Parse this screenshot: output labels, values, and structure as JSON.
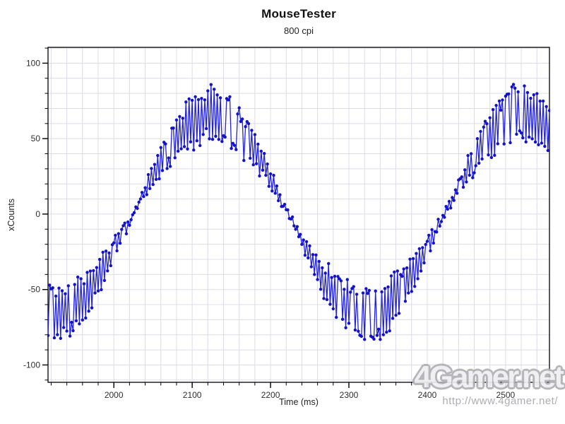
{
  "chart_data": {
    "type": "line",
    "title": "MouseTester",
    "subtitle": "800 cpi",
    "xlabel": "Time (ms)",
    "ylabel": "xCounts",
    "xlim": [
      1916,
      2556
    ],
    "ylim": [
      -111.5,
      110.5
    ],
    "x_major_ticks": [
      2000,
      2100,
      2200,
      2300,
      2400,
      2500
    ],
    "x_minor_step_ms": 20,
    "y_major_ticks": [
      100,
      50,
      0,
      -50,
      -100
    ],
    "y_minor_step_counts": 10,
    "grid": {
      "show": true,
      "color": "#dcdce8",
      "x_interval_ms": 20,
      "y_interval_counts": 10
    },
    "axis_color": "#000000",
    "tick_label_color": "#2e2e2e",
    "legend": "none",
    "series": [
      {
        "name": "xCounts",
        "line_color": "#2222dd",
        "marker_color": "#1212c8",
        "marker": "circle",
        "sample_interval_ms": 2,
        "signal_model": {
          "shape": "sine wave with alternating multiplicative jitter (polling jitter)",
          "mean_amplitude_counts": 66,
          "period_ms": 398,
          "rising_zero_crossing_ms": 2024,
          "jitter_fraction_min": 0.17,
          "jitter_fraction_max": 0.3,
          "alternation_flip_probability": 0.1,
          "additive_noise_counts": 2.5,
          "seed": 11
        },
        "envelope_summary": {
          "peaks_ms": [
            2122,
            2521
          ],
          "peak_range_counts": [
            48,
            86
          ],
          "troughs_ms": [
            1924,
            2322
          ],
          "trough_range_counts": [
            -88,
            -48
          ],
          "zero_crossing_spread_counts": 5
        }
      }
    ]
  },
  "watermark": {
    "logo_text": "4Gamer.net",
    "url_text": "http://www.4gamer.net/",
    "color": "#b0b0b5"
  }
}
